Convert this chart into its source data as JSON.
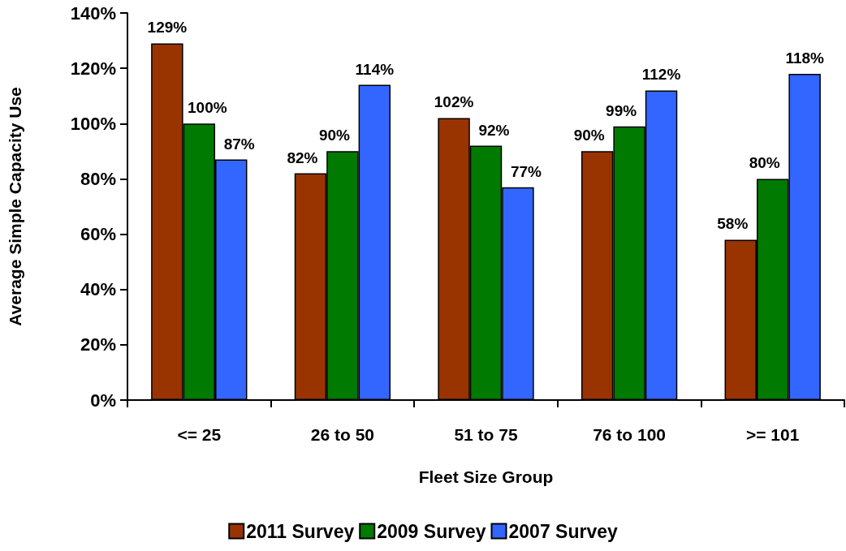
{
  "chart_data": {
    "type": "bar",
    "xlabel": "Fleet Size Group",
    "ylabel": "Average Simple Capacity Use",
    "legend": "bottom",
    "categories": [
      "<= 25",
      "26 to 50",
      "51 to 75",
      "76 to 100",
      ">= 101"
    ],
    "series": [
      {
        "name": "2011 Survey",
        "color": "#993300",
        "values": [
          129,
          82,
          102,
          90,
          58
        ],
        "value_labels": [
          "129%",
          "82%",
          "102%",
          "90%",
          "58%"
        ]
      },
      {
        "name": "2009 Survey",
        "color": "#007a00",
        "values": [
          100,
          90,
          92,
          99,
          80
        ],
        "value_labels": [
          "100%",
          "90%",
          "92%",
          "99%",
          "80%"
        ]
      },
      {
        "name": "2007 Survey",
        "color": "#3366ff",
        "values": [
          87,
          114,
          77,
          112,
          118
        ],
        "value_labels": [
          "87%",
          "114%",
          "77%",
          "112%",
          "118%"
        ]
      }
    ],
    "ylim": [
      0,
      140
    ],
    "yticks": [
      {
        "value": 0,
        "label": "0%"
      },
      {
        "value": 20,
        "label": "20%"
      },
      {
        "value": 40,
        "label": "40%"
      },
      {
        "value": 60,
        "label": "60%"
      },
      {
        "value": 80,
        "label": "80%"
      },
      {
        "value": 100,
        "label": "100%"
      },
      {
        "value": 120,
        "label": "120%"
      },
      {
        "value": 140,
        "label": "140%"
      }
    ]
  }
}
